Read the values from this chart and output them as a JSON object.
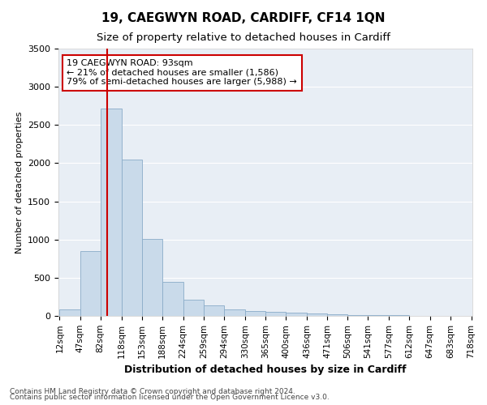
{
  "title": "19, CAEGWYN ROAD, CARDIFF, CF14 1QN",
  "subtitle": "Size of property relative to detached houses in Cardiff",
  "xlabel": "Distribution of detached houses by size in Cardiff",
  "ylabel": "Number of detached properties",
  "footnote1": "Contains HM Land Registry data © Crown copyright and database right 2024.",
  "footnote2": "Contains public sector information licensed under the Open Government Licence v3.0.",
  "annotation_line1": "19 CAEGWYN ROAD: 93sqm",
  "annotation_line2": "← 21% of detached houses are smaller (1,586)",
  "annotation_line3": "79% of semi-detached houses are larger (5,988) →",
  "bar_color": "#c9daea",
  "bar_edge_color": "#8aacc8",
  "red_line_x": 93,
  "ylim": [
    0,
    3500
  ],
  "yticks": [
    0,
    500,
    1000,
    1500,
    2000,
    2500,
    3000,
    3500
  ],
  "bin_edges": [
    12,
    47,
    82,
    118,
    153,
    188,
    224,
    259,
    294,
    330,
    365,
    400,
    436,
    471,
    506,
    541,
    577,
    612,
    647,
    683,
    718
  ],
  "bin_labels": [
    "12sqm",
    "47sqm",
    "82sqm",
    "118sqm",
    "153sqm",
    "188sqm",
    "224sqm",
    "259sqm",
    "294sqm",
    "330sqm",
    "365sqm",
    "400sqm",
    "436sqm",
    "471sqm",
    "506sqm",
    "541sqm",
    "577sqm",
    "612sqm",
    "647sqm",
    "683sqm",
    "718sqm"
  ],
  "bar_heights": [
    80,
    850,
    2720,
    2050,
    1010,
    450,
    210,
    140,
    80,
    60,
    50,
    40,
    30,
    20,
    15,
    10,
    8,
    5,
    3,
    2
  ],
  "background_color": "#ffffff",
  "plot_bg_color": "#e8eef5",
  "grid_color": "#ffffff",
  "annotation_box_facecolor": "#ffffff",
  "annotation_box_edgecolor": "#cc0000",
  "title_fontsize": 11,
  "subtitle_fontsize": 9.5,
  "ylabel_fontsize": 8,
  "xlabel_fontsize": 9,
  "tick_fontsize": 7.5,
  "ytick_fontsize": 8,
  "annotation_fontsize": 8,
  "footnote_fontsize": 6.5
}
